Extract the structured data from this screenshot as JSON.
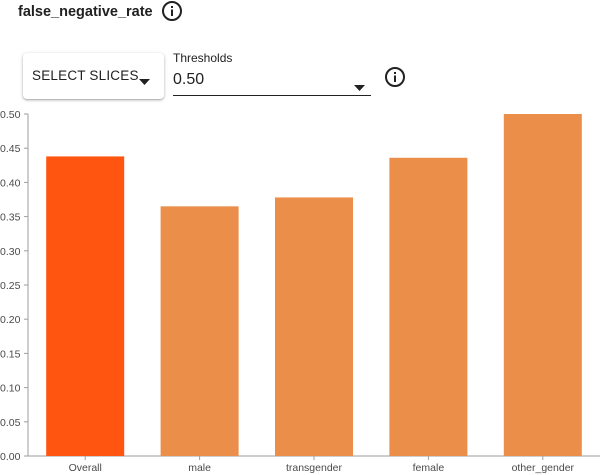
{
  "header": {
    "metric_title": "false_negative_rate",
    "info_icon": "info-icon"
  },
  "controls": {
    "select_slices_label": "SELECT SLICES",
    "thresholds_label": "Thresholds",
    "threshold_value": "0.50",
    "caret_icon": "caret-down-icon",
    "info_icon": "info-icon"
  },
  "colors": {
    "highlight_bar": "#ff5511",
    "bar": "#ea8e4a",
    "text": "#212121"
  },
  "chart_data": {
    "type": "bar",
    "title": "",
    "xlabel": "",
    "ylabel": "",
    "categories": [
      "Overall",
      "male",
      "transgender",
      "female",
      "other_gender"
    ],
    "values": [
      0.438,
      0.365,
      0.378,
      0.436,
      0.5
    ],
    "highlighted_category": "Overall",
    "ylim": [
      0,
      0.5
    ],
    "yticks": [
      "0.00",
      "0.05",
      "0.10",
      "0.15",
      "0.20",
      "0.25",
      "0.30",
      "0.35",
      "0.40",
      "0.45",
      "0.50"
    ],
    "grid": false,
    "legend": "none"
  }
}
